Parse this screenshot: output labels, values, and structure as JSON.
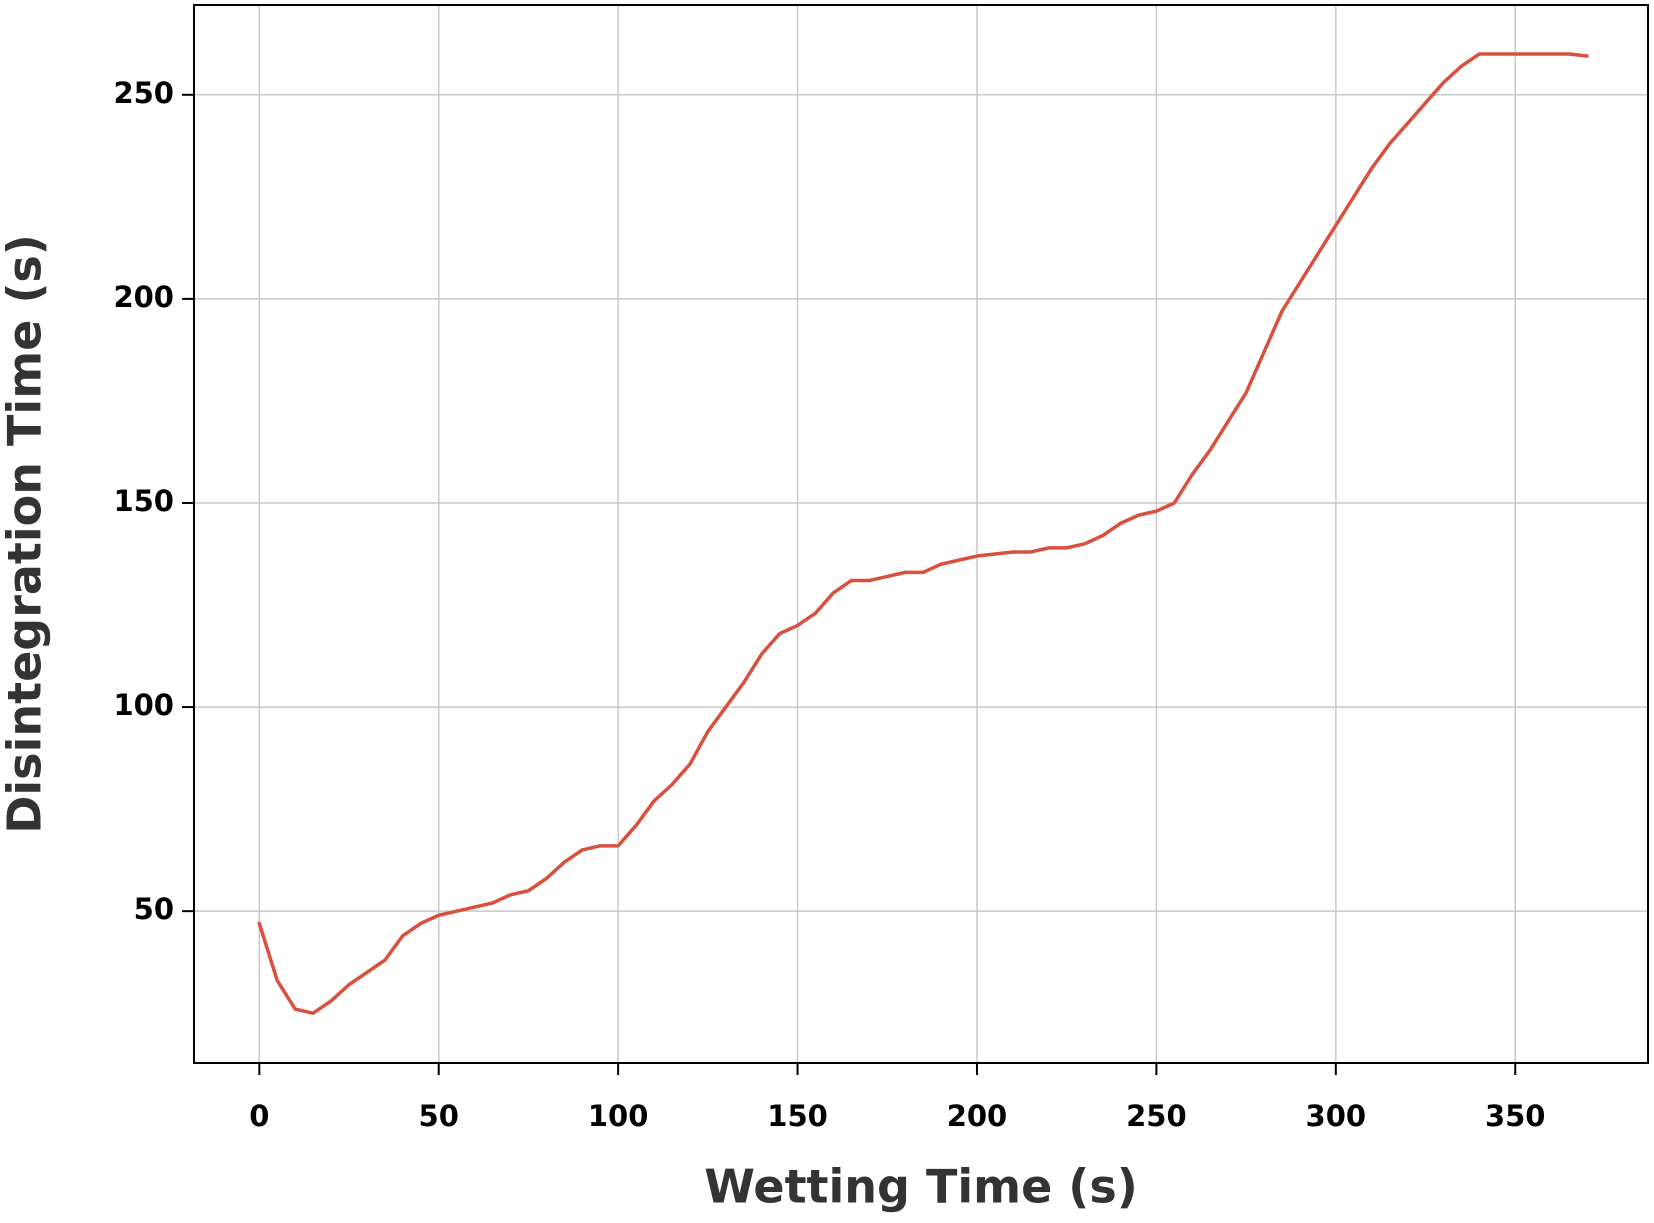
{
  "chart_data": {
    "type": "line",
    "x_label": "Wetting Time (s)",
    "y_label": "Disintegration Time (s)",
    "xlim": [
      -18.2,
      387
    ],
    "ylim": [
      12.8,
      272
    ],
    "xticks": [
      0,
      50,
      100,
      150,
      200,
      250,
      300,
      350
    ],
    "yticks": [
      50,
      100,
      150,
      200,
      250
    ],
    "grid": true,
    "x": [
      0,
      5,
      10,
      15,
      20,
      25,
      30,
      35,
      40,
      45,
      50,
      55,
      60,
      65,
      70,
      75,
      80,
      85,
      90,
      95,
      100,
      105,
      110,
      115,
      120,
      125,
      130,
      135,
      140,
      145,
      150,
      155,
      160,
      165,
      170,
      175,
      180,
      185,
      190,
      195,
      200,
      205,
      210,
      215,
      220,
      225,
      230,
      235,
      240,
      245,
      250,
      255,
      260,
      265,
      270,
      275,
      280,
      285,
      290,
      295,
      300,
      305,
      310,
      315,
      320,
      325,
      330,
      335,
      340,
      345,
      350,
      355,
      360,
      365,
      370
    ],
    "series": [
      {
        "color": "#d9503f",
        "values": [
          47,
          33,
          26,
          25,
          28,
          32,
          35,
          38,
          44,
          47,
          49,
          50,
          51,
          52,
          54,
          55,
          58,
          62,
          65,
          66,
          66,
          71,
          77,
          81,
          86,
          94,
          100,
          106,
          113,
          118,
          120,
          123,
          128,
          131,
          131,
          132,
          133,
          133,
          135,
          136,
          137,
          137.5,
          138,
          138,
          139,
          139,
          140,
          142,
          145,
          147,
          148,
          150,
          157,
          163,
          170,
          177,
          187,
          197,
          204,
          211,
          218,
          225,
          232,
          238,
          243,
          248,
          253,
          257,
          260,
          260,
          260,
          260,
          260,
          260,
          259.5
        ]
      }
    ]
  }
}
